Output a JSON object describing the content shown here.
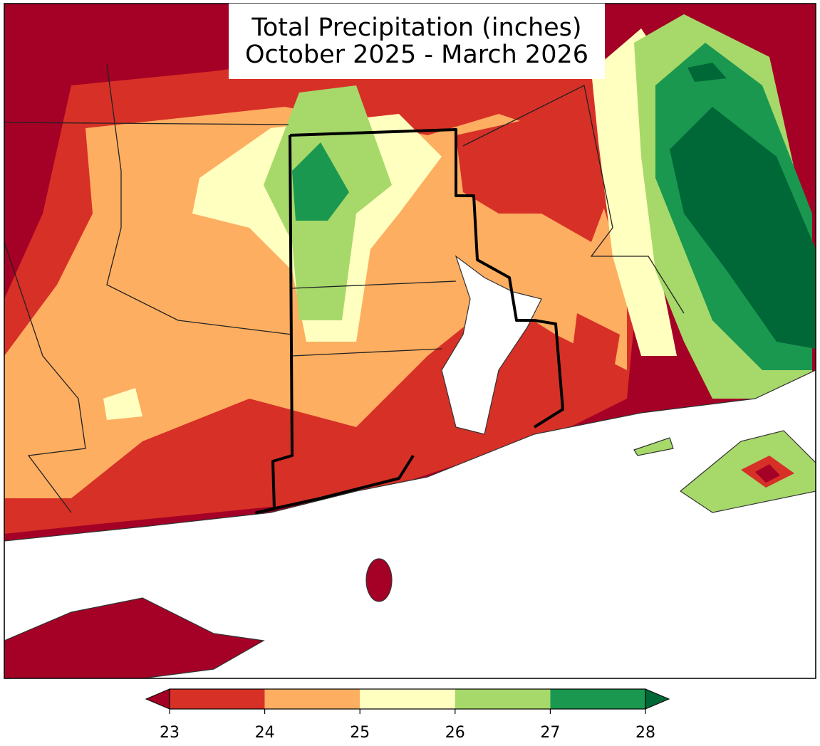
{
  "title": [
    "Total Precipitation (inches)",
    "October 2025 - March 2026"
  ],
  "colorbar": {
    "ticks": [
      23,
      24,
      25,
      26,
      27,
      28
    ],
    "colors": [
      "#a50026",
      "#d73027",
      "#fdae61",
      "#ffffbf",
      "#a6d96a",
      "#1a9850",
      "#006837"
    ],
    "extend": "both"
  }
}
